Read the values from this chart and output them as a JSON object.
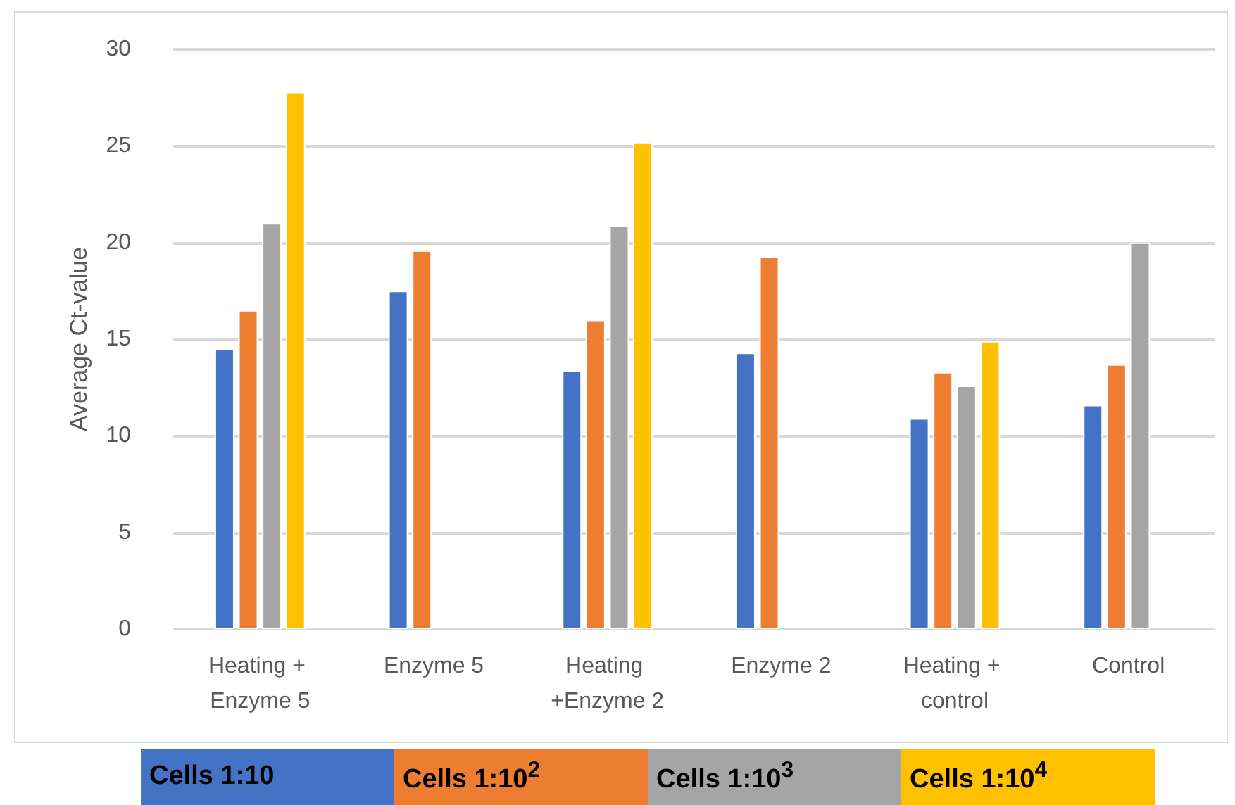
{
  "chart_data": {
    "type": "bar",
    "ylabel": "Average Ct-value",
    "categories": [
      "Heating + Enzyme 5",
      "Enzyme 5",
      "Heating +Enzyme 2",
      "Enzyme 2",
      "Heating + control",
      "Control"
    ],
    "series": [
      {
        "name": "Cells 1:10",
        "color": "#4472c4",
        "values": [
          14.5,
          17.5,
          13.4,
          14.3,
          10.9,
          11.6
        ]
      },
      {
        "name": "Cells 1:10$^{2}$",
        "color": "#ed7d31",
        "values": [
          16.5,
          19.6,
          16,
          19.3,
          13.3,
          13.7
        ]
      },
      {
        "name": "Cells 1:10$^{3}$",
        "color": "#a5a5a5",
        "values": [
          21,
          null,
          20.9,
          null,
          12.6,
          20
        ]
      },
      {
        "name": "Cells 1:10$^{4}$",
        "color": "#ffc000",
        "values": [
          27.8,
          null,
          25.2,
          null,
          14.9,
          null
        ]
      }
    ],
    "ylim": [
      0,
      30
    ],
    "yticks": [
      0,
      5,
      10,
      15,
      20,
      25,
      30
    ],
    "grid": "y",
    "legend": "bottom"
  }
}
